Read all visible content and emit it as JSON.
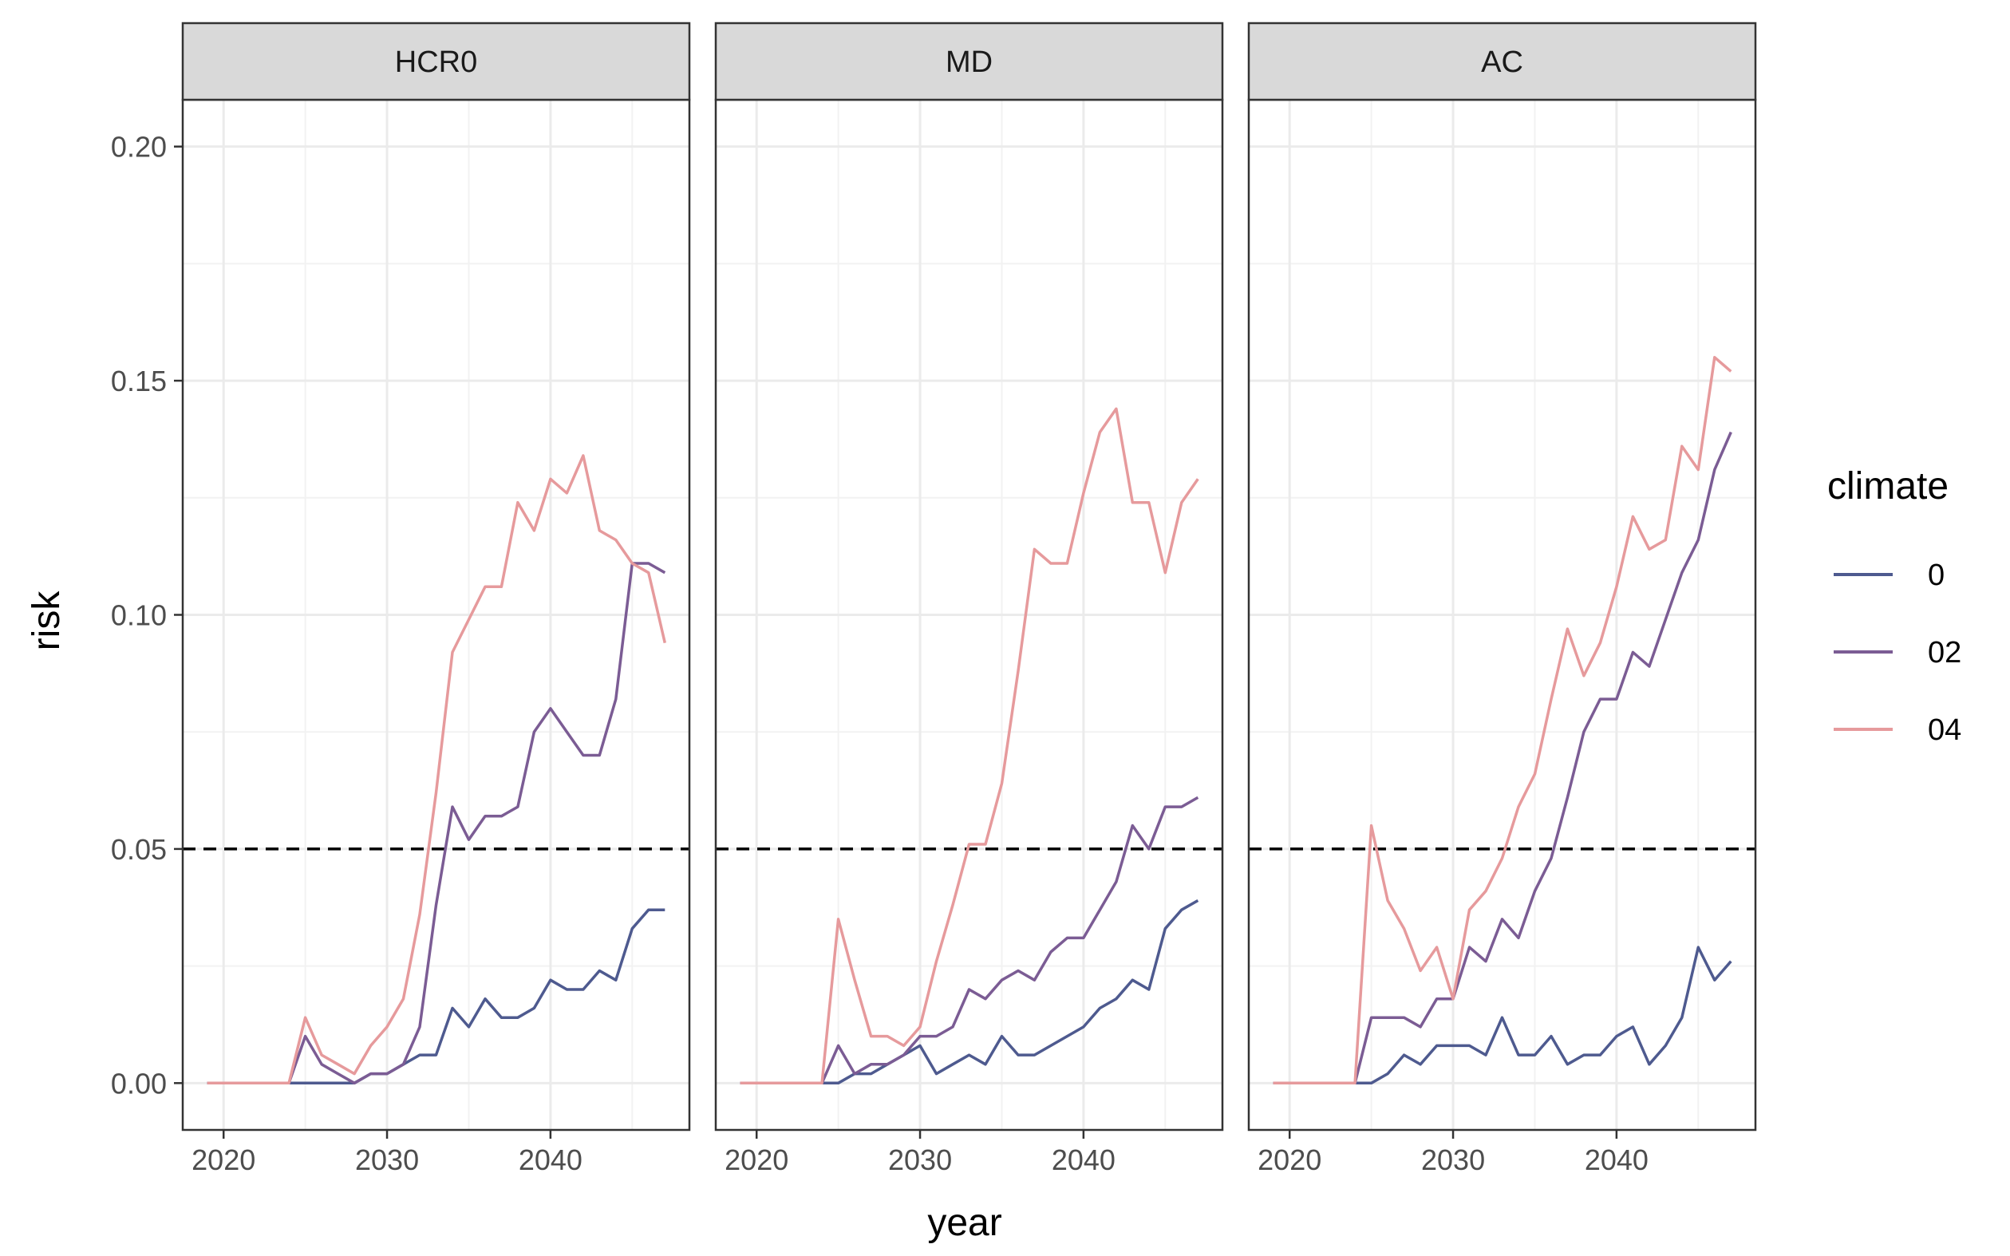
{
  "chart_data": {
    "type": "line",
    "xlabel": "year",
    "ylabel": "risk",
    "xlim": [
      2017.5,
      2048.5
    ],
    "ylim": [
      -0.01,
      0.21
    ],
    "x_ticks": [
      2020,
      2030,
      2040
    ],
    "y_ticks": [
      0.0,
      0.05,
      0.1,
      0.15,
      0.2
    ],
    "y_tick_labels": [
      "0.00",
      "0.05",
      "0.10",
      "0.15",
      "0.20"
    ],
    "reference_line": {
      "y": 0.05,
      "style": "dashed",
      "color": "#000000"
    },
    "grid": true,
    "legend": {
      "title": "climate",
      "placement": "right",
      "entries": [
        {
          "label": "0",
          "color": "#4e5a8f"
        },
        {
          "label": "02",
          "color": "#7b5c94"
        },
        {
          "label": "04",
          "color": "#e69a9c"
        }
      ]
    },
    "panels": [
      {
        "name": "HCR0",
        "series": [
          {
            "name": "0",
            "x": [
              2019,
              2020,
              2021,
              2022,
              2023,
              2024,
              2025,
              2026,
              2027,
              2028,
              2029,
              2030,
              2031,
              2032,
              2033,
              2034,
              2035,
              2036,
              2037,
              2038,
              2039,
              2040,
              2041,
              2042,
              2043,
              2044,
              2045,
              2046,
              2047
            ],
            "values": [
              0,
              0,
              0,
              0,
              0,
              0,
              0,
              0,
              0,
              0,
              0.002,
              0.002,
              0.004,
              0.006,
              0.006,
              0.016,
              0.012,
              0.018,
              0.014,
              0.014,
              0.016,
              0.022,
              0.02,
              0.02,
              0.024,
              0.022,
              0.033,
              0.037,
              0.037
            ]
          },
          {
            "name": "02",
            "x": [
              2019,
              2020,
              2021,
              2022,
              2023,
              2024,
              2025,
              2026,
              2027,
              2028,
              2029,
              2030,
              2031,
              2032,
              2033,
              2034,
              2035,
              2036,
              2037,
              2038,
              2039,
              2040,
              2041,
              2042,
              2043,
              2044,
              2045,
              2046,
              2047
            ],
            "values": [
              0,
              0,
              0,
              0,
              0,
              0,
              0.01,
              0.004,
              0.002,
              0,
              0.002,
              0.002,
              0.004,
              0.012,
              0.038,
              0.059,
              0.052,
              0.057,
              0.057,
              0.059,
              0.075,
              0.08,
              0.075,
              0.07,
              0.07,
              0.082,
              0.111,
              0.111,
              0.109
            ]
          },
          {
            "name": "04",
            "x": [
              2019,
              2020,
              2021,
              2022,
              2023,
              2024,
              2025,
              2026,
              2027,
              2028,
              2029,
              2030,
              2031,
              2032,
              2033,
              2034,
              2035,
              2036,
              2037,
              2038,
              2039,
              2040,
              2041,
              2042,
              2043,
              2044,
              2045,
              2046,
              2047
            ],
            "values": [
              0,
              0,
              0,
              0,
              0,
              0,
              0.014,
              0.006,
              0.004,
              0.002,
              0.008,
              0.012,
              0.018,
              0.036,
              0.062,
              0.092,
              0.099,
              0.106,
              0.106,
              0.124,
              0.118,
              0.129,
              0.126,
              0.134,
              0.118,
              0.116,
              0.111,
              0.109,
              0.094
            ]
          }
        ]
      },
      {
        "name": "MD",
        "series": [
          {
            "name": "0",
            "x": [
              2019,
              2020,
              2021,
              2022,
              2023,
              2024,
              2025,
              2026,
              2027,
              2028,
              2029,
              2030,
              2031,
              2032,
              2033,
              2034,
              2035,
              2036,
              2037,
              2038,
              2039,
              2040,
              2041,
              2042,
              2043,
              2044,
              2045,
              2046,
              2047
            ],
            "values": [
              0,
              0,
              0,
              0,
              0,
              0,
              0,
              0.002,
              0.002,
              0.004,
              0.006,
              0.008,
              0.002,
              0.004,
              0.006,
              0.004,
              0.01,
              0.006,
              0.006,
              0.008,
              0.01,
              0.012,
              0.016,
              0.018,
              0.022,
              0.02,
              0.033,
              0.037,
              0.039
            ]
          },
          {
            "name": "02",
            "x": [
              2019,
              2020,
              2021,
              2022,
              2023,
              2024,
              2025,
              2026,
              2027,
              2028,
              2029,
              2030,
              2031,
              2032,
              2033,
              2034,
              2035,
              2036,
              2037,
              2038,
              2039,
              2040,
              2041,
              2042,
              2043,
              2044,
              2045,
              2046,
              2047
            ],
            "values": [
              0,
              0,
              0,
              0,
              0,
              0,
              0.008,
              0.002,
              0.004,
              0.004,
              0.006,
              0.01,
              0.01,
              0.012,
              0.02,
              0.018,
              0.022,
              0.024,
              0.022,
              0.028,
              0.031,
              0.031,
              0.037,
              0.043,
              0.055,
              0.05,
              0.059,
              0.059,
              0.061
            ]
          },
          {
            "name": "04",
            "x": [
              2019,
              2020,
              2021,
              2022,
              2023,
              2024,
              2025,
              2026,
              2027,
              2028,
              2029,
              2030,
              2031,
              2032,
              2033,
              2034,
              2035,
              2036,
              2037,
              2038,
              2039,
              2040,
              2041,
              2042,
              2043,
              2044,
              2045,
              2046,
              2047
            ],
            "values": [
              0,
              0,
              0,
              0,
              0,
              0,
              0.035,
              0.022,
              0.01,
              0.01,
              0.008,
              0.012,
              0.026,
              0.038,
              0.051,
              0.051,
              0.064,
              0.088,
              0.114,
              0.111,
              0.111,
              0.126,
              0.139,
              0.144,
              0.124,
              0.124,
              0.109,
              0.124,
              0.129
            ]
          }
        ]
      },
      {
        "name": "AC",
        "series": [
          {
            "name": "0",
            "x": [
              2019,
              2020,
              2021,
              2022,
              2023,
              2024,
              2025,
              2026,
              2027,
              2028,
              2029,
              2030,
              2031,
              2032,
              2033,
              2034,
              2035,
              2036,
              2037,
              2038,
              2039,
              2040,
              2041,
              2042,
              2043,
              2044,
              2045,
              2046,
              2047
            ],
            "values": [
              0,
              0,
              0,
              0,
              0,
              0,
              0,
              0.002,
              0.006,
              0.004,
              0.008,
              0.008,
              0.008,
              0.006,
              0.014,
              0.006,
              0.006,
              0.01,
              0.004,
              0.006,
              0.006,
              0.01,
              0.012,
              0.004,
              0.008,
              0.014,
              0.029,
              0.022,
              0.026
            ]
          },
          {
            "name": "02",
            "x": [
              2019,
              2020,
              2021,
              2022,
              2023,
              2024,
              2025,
              2026,
              2027,
              2028,
              2029,
              2030,
              2031,
              2032,
              2033,
              2034,
              2035,
              2036,
              2037,
              2038,
              2039,
              2040,
              2041,
              2042,
              2043,
              2044,
              2045,
              2046,
              2047
            ],
            "values": [
              0,
              0,
              0,
              0,
              0,
              0,
              0.014,
              0.014,
              0.014,
              0.012,
              0.018,
              0.018,
              0.029,
              0.026,
              0.035,
              0.031,
              0.041,
              0.048,
              0.061,
              0.075,
              0.082,
              0.082,
              0.092,
              0.089,
              0.099,
              0.109,
              0.116,
              0.131,
              0.139
            ]
          },
          {
            "name": "04",
            "x": [
              2019,
              2020,
              2021,
              2022,
              2023,
              2024,
              2025,
              2026,
              2027,
              2028,
              2029,
              2030,
              2031,
              2032,
              2033,
              2034,
              2035,
              2036,
              2037,
              2038,
              2039,
              2040,
              2041,
              2042,
              2043,
              2044,
              2045,
              2046,
              2047
            ],
            "values": [
              0,
              0,
              0,
              0,
              0,
              0,
              0.055,
              0.039,
              0.033,
              0.024,
              0.029,
              0.018,
              0.037,
              0.041,
              0.048,
              0.059,
              0.066,
              0.082,
              0.097,
              0.087,
              0.094,
              0.106,
              0.121,
              0.114,
              0.116,
              0.136,
              0.131,
              0.155,
              0.152
            ]
          }
        ]
      }
    ]
  }
}
